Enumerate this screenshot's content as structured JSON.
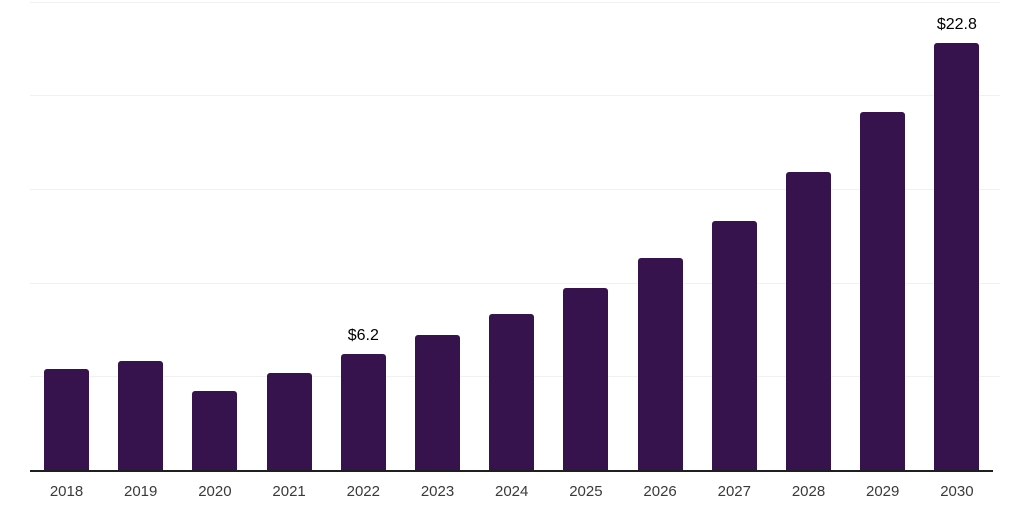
{
  "chart_data": {
    "type": "bar",
    "title": "",
    "xlabel": "",
    "ylabel": "",
    "categories": [
      "2018",
      "2019",
      "2020",
      "2021",
      "2022",
      "2023",
      "2024",
      "2025",
      "2026",
      "2027",
      "2028",
      "2029",
      "2030"
    ],
    "values": [
      5.4,
      5.8,
      4.2,
      5.2,
      6.2,
      7.2,
      8.3,
      9.7,
      11.3,
      13.3,
      15.9,
      19.1,
      22.8
    ],
    "bar_labels": [
      "",
      "",
      "",
      "",
      "$6.2",
      "",
      "",
      "",
      "",
      "",
      "",
      "",
      "$22.8"
    ],
    "ylim": [
      0,
      25
    ],
    "gridline_values": [
      5,
      10,
      15,
      20,
      25
    ],
    "grid": true,
    "legend": "none",
    "colors": {
      "bar": "#36134D",
      "axis": "#1f1f1f",
      "gridline": "#f1f1f1",
      "tick_label": "#3a3a3a",
      "value_label": "#000000",
      "background": "#ffffff"
    }
  }
}
